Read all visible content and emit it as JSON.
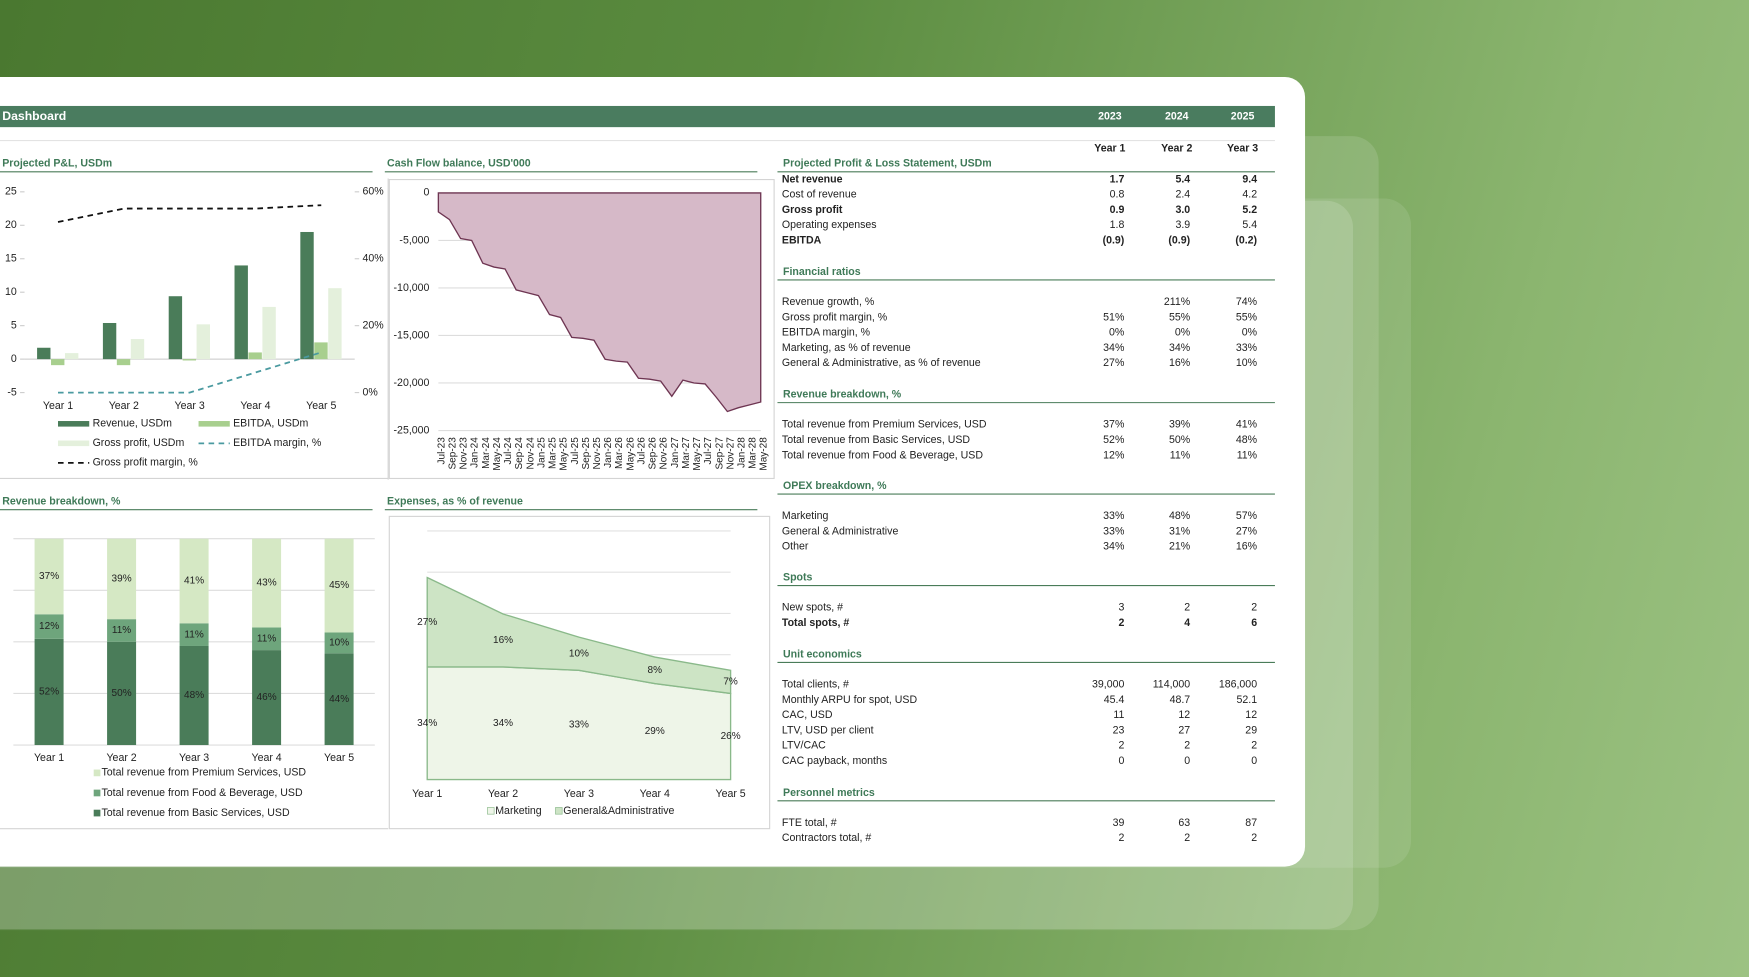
{
  "header": {
    "title": "Dashboard",
    "years": [
      "2023",
      "2024",
      "2025"
    ]
  },
  "chart_data": [
    {
      "type": "bar",
      "title": "Projected P&L, USDm",
      "categories": [
        "Year 1",
        "Year 2",
        "Year 3",
        "Year 4",
        "Year 5"
      ],
      "ylim": [
        -5,
        25
      ],
      "yticks": [
        -5,
        0,
        5,
        10,
        15,
        20,
        25
      ],
      "y2lim": [
        0,
        60
      ],
      "y2ticks": [
        {
          "value": 0,
          "label": "0%"
        },
        {
          "value": 20,
          "label": "20%"
        },
        {
          "value": 40,
          "label": "40%"
        },
        {
          "value": 60,
          "label": "60%"
        }
      ],
      "series": [
        {
          "name": "Revenue, USDm",
          "type": "bar",
          "color": "#4a7c59",
          "values": [
            1.7,
            5.4,
            9.4,
            14,
            19
          ]
        },
        {
          "name": "EBITDA, USDm",
          "type": "bar",
          "color": "#a8cf8e",
          "values": [
            -0.9,
            -0.9,
            -0.2,
            1,
            2.5
          ]
        },
        {
          "name": "Gross profit, USDm",
          "type": "bar",
          "color": "#e4f0dc",
          "values": [
            0.9,
            3.0,
            5.2,
            7.8,
            10.6
          ]
        },
        {
          "name": "EBITDA margin, %",
          "type": "line",
          "dashed": true,
          "axis": "y2",
          "color": "#4a9aa0",
          "values": [
            0,
            0,
            0,
            6,
            12
          ]
        },
        {
          "name": "Gross profit margin, %",
          "type": "line",
          "dashed": true,
          "axis": "y2",
          "color": "#111111",
          "values": [
            51,
            55,
            55,
            55,
            56
          ]
        }
      ]
    },
    {
      "type": "area",
      "title": "Cash Flow balance, USD'000",
      "categories": [
        "Jul-23",
        "Sep-23",
        "Nov-23",
        "Jan-24",
        "Mar-24",
        "May-24",
        "Jul-24",
        "Sep-24",
        "Nov-24",
        "Jan-25",
        "Mar-25",
        "May-25",
        "Jul-25",
        "Sep-25",
        "Nov-25",
        "Jan-26",
        "Mar-26",
        "May-26",
        "Jul-26",
        "Sep-26",
        "Nov-26",
        "Jan-27",
        "Mar-27",
        "May-27",
        "Jul-27",
        "Sep-27",
        "Nov-27",
        "Jan-28",
        "Mar-28",
        "May-28"
      ],
      "values": [
        -2000,
        -2800,
        -4800,
        -5000,
        -7400,
        -7800,
        -8000,
        -10200,
        -10500,
        -10800,
        -12800,
        -13100,
        -15200,
        -15300,
        -15500,
        -17500,
        -17700,
        -17800,
        -19500,
        -19600,
        -19800,
        -21400,
        -19700,
        -20000,
        -20100,
        -21500,
        -23000,
        -22600,
        -22300,
        -22000
      ],
      "color": "#d6b9c8",
      "line_color": "#6e3552",
      "grid": true,
      "ylim": [
        -25000,
        0
      ],
      "yticks": [
        {
          "value": -25000,
          "label": "-25,000"
        },
        {
          "value": -20000,
          "label": "-20,000"
        },
        {
          "value": -15000,
          "label": "-15,000"
        },
        {
          "value": -10000,
          "label": "-10,000"
        },
        {
          "value": -5000,
          "label": "-5,000"
        },
        0
      ]
    },
    {
      "type": "stacked_bar",
      "title": "Revenue breakdown, %",
      "categories": [
        "Year 1",
        "Year 2",
        "Year 3",
        "Year 4",
        "Year 5"
      ],
      "series": [
        {
          "name": "Total revenue from Basic Services, USD",
          "color": "#4a7c59",
          "values": [
            52,
            50,
            48,
            46,
            44
          ],
          "value_labels": [
            "52%",
            "50%",
            "48%",
            "46%",
            "44%"
          ]
        },
        {
          "name": "Total revenue from Food & Beverage, USD",
          "color": "#6ea57c",
          "values": [
            12,
            11,
            11,
            11,
            10
          ],
          "value_labels": [
            "12%",
            "11%",
            "11%",
            "11%",
            "10%"
          ]
        },
        {
          "name": "Total revenue from Premium Services, USD",
          "color": "#d5e8c4",
          "values": [
            37,
            39,
            41,
            43,
            45
          ],
          "value_labels": [
            "37%",
            "39%",
            "41%",
            "43%",
            "45%"
          ]
        }
      ]
    },
    {
      "type": "stacked_area",
      "title": "Expenses, as % of revenue",
      "categories": [
        "Year 1",
        "Year 2",
        "Year 3",
        "Year 4",
        "Year 5"
      ],
      "series": [
        {
          "name": "Marketing",
          "color": "#eef5e8",
          "values": [
            34,
            34,
            33,
            29,
            26
          ],
          "value_labels": [
            "34%",
            "34%",
            "33%",
            "29%",
            "26%"
          ]
        },
        {
          "name": "General&Administrative",
          "color": "#cde4c5",
          "values": [
            27,
            16,
            10,
            8,
            7
          ],
          "value_labels": [
            "27%",
            "16%",
            "10%",
            "8%",
            "7%"
          ]
        }
      ]
    }
  ],
  "table": {
    "columns": [
      "Year 1",
      "Year 2",
      "Year 3"
    ],
    "sections": [
      {
        "title": "Projected Profit & Loss Statement, USDm",
        "rows": [
          {
            "label": "Net revenue",
            "bold": true,
            "values": [
              "1.7",
              "5.4",
              "9.4"
            ]
          },
          {
            "label": "Cost of revenue",
            "values": [
              "0.8",
              "2.4",
              "4.2"
            ]
          },
          {
            "label": "Gross profit",
            "bold": true,
            "values": [
              "0.9",
              "3.0",
              "5.2"
            ]
          },
          {
            "label": "Operating expenses",
            "values": [
              "1.8",
              "3.9",
              "5.4"
            ]
          },
          {
            "label": "EBITDA",
            "bold": true,
            "values": [
              "(0.9)",
              "(0.9)",
              "(0.2)"
            ]
          }
        ]
      },
      {
        "title": "Financial ratios",
        "rows": [
          {
            "label": "Revenue growth, %",
            "values": [
              null,
              "211%",
              "74%"
            ]
          },
          {
            "label": "Gross profit margin, %",
            "values": [
              "51%",
              "55%",
              "55%"
            ]
          },
          {
            "label": "EBITDA margin, %",
            "values": [
              "0%",
              "0%",
              "0%"
            ]
          },
          {
            "label": "Marketing, as % of revenue",
            "values": [
              "34%",
              "34%",
              "33%"
            ]
          },
          {
            "label": "General & Administrative, as % of revenue",
            "values": [
              "27%",
              "16%",
              "10%"
            ]
          }
        ]
      },
      {
        "title": "Revenue breakdown, %",
        "rows": [
          {
            "label": "Total revenue from Premium Services, USD",
            "values": [
              "37%",
              "39%",
              "41%"
            ]
          },
          {
            "label": "Total revenue from Basic Services, USD",
            "values": [
              "52%",
              "50%",
              "48%"
            ]
          },
          {
            "label": "Total revenue from Food & Beverage, USD",
            "values": [
              "12%",
              "11%",
              "11%"
            ]
          }
        ]
      },
      {
        "title": "OPEX breakdown, %",
        "rows": [
          {
            "label": "Marketing",
            "values": [
              "33%",
              "48%",
              "57%"
            ]
          },
          {
            "label": "General & Administrative",
            "values": [
              "33%",
              "31%",
              "27%"
            ]
          },
          {
            "label": "Other",
            "values": [
              "34%",
              "21%",
              "16%"
            ]
          }
        ]
      },
      {
        "title": "Spots",
        "rows": [
          {
            "label": "New spots, #",
            "values": [
              "3",
              "2",
              "2"
            ]
          },
          {
            "label": "Total spots, #",
            "bold": true,
            "values": [
              "2",
              "4",
              "6"
            ]
          }
        ]
      },
      {
        "title": "Unit economics",
        "rows": [
          {
            "label": "Total clients, #",
            "values": [
              "39,000",
              "114,000",
              "186,000"
            ]
          },
          {
            "label": "Monthly ARPU for spot, USD",
            "values": [
              "45.4",
              "48.7",
              "52.1"
            ]
          },
          {
            "label": "CAC, USD",
            "values": [
              "11",
              "12",
              "12"
            ]
          },
          {
            "label": "LTV, USD per client",
            "values": [
              "23",
              "27",
              "29"
            ]
          },
          {
            "label": "LTV/CAC",
            "values": [
              "2",
              "2",
              "2"
            ]
          },
          {
            "label": "CAC payback, months",
            "values": [
              "0",
              "0",
              "0"
            ]
          }
        ]
      },
      {
        "title": "Personnel metrics",
        "rows": [
          {
            "label": "FTE total, #",
            "values": [
              "39",
              "63",
              "87"
            ]
          },
          {
            "label": "Contractors total, #",
            "values": [
              "2",
              "2",
              "2"
            ]
          }
        ]
      }
    ]
  }
}
